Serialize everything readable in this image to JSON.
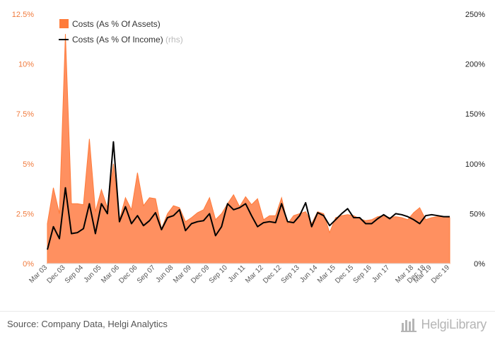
{
  "chart_data": {
    "type": "area+line",
    "x_tick_labels": [
      "Mar 03",
      "Dec 03",
      "Sep 04",
      "Jun 05",
      "Mar 06",
      "Dec 06",
      "Sep 07",
      "Jun 08",
      "Mar 09",
      "Dec 09",
      "Sep 10",
      "Jun 11",
      "Mar 12",
      "Dec 12",
      "Sep 13",
      "Jun 14",
      "Mar 15",
      "Dec 15",
      "Sep 16",
      "Jun 17",
      "Mar 18",
      "Dec 18",
      "Mar 19",
      "Dec 19"
    ],
    "x_tick_quarter_index": [
      0,
      3,
      6,
      9,
      12,
      15,
      18,
      21,
      24,
      27,
      30,
      33,
      36,
      39,
      42,
      45,
      48,
      51,
      54,
      57,
      61,
      63,
      64,
      67
    ],
    "left_axis": {
      "ticks": [
        "0%",
        "2.5%",
        "5%",
        "7.5%",
        "10%",
        "12.5%"
      ],
      "range": [
        0,
        12.5
      ]
    },
    "right_axis": {
      "ticks": [
        "0%",
        "50%",
        "100%",
        "150%",
        "200%",
        "250%"
      ],
      "range": [
        0,
        250
      ]
    },
    "series": [
      {
        "name": "Costs (As % Of Assets)",
        "axis": "left",
        "kind": "area",
        "color": "#ff9060",
        "values": [
          2.0,
          3.8,
          2.5,
          11.5,
          3.0,
          3.0,
          2.95,
          6.25,
          2.6,
          3.7,
          2.8,
          5.0,
          2.2,
          3.3,
          2.7,
          4.55,
          2.9,
          3.3,
          3.25,
          1.75,
          2.5,
          2.9,
          2.8,
          2.1,
          2.3,
          2.55,
          2.7,
          3.3,
          2.2,
          2.5,
          3.0,
          3.45,
          2.85,
          3.35,
          2.95,
          3.25,
          2.2,
          2.4,
          2.4,
          3.3,
          2.0,
          2.4,
          2.5,
          2.6,
          2.0,
          2.6,
          2.5,
          1.55,
          2.3,
          2.4,
          2.45,
          2.4,
          2.25,
          2.15,
          2.2,
          2.35,
          2.4,
          2.3,
          2.35,
          2.3,
          2.2,
          2.55,
          2.8,
          2.2,
          2.3,
          2.35,
          2.35,
          2.3
        ]
      },
      {
        "name": "Costs (As % Of Income)",
        "axis": "right",
        "kind": "line",
        "note": "(rhs)",
        "color": "#000000",
        "values": [
          14,
          37,
          25,
          76,
          30,
          31,
          35,
          60,
          30,
          60,
          50,
          122,
          42,
          57,
          40,
          48,
          38,
          43,
          51,
          34,
          46,
          48,
          54,
          33,
          40,
          42,
          43,
          50,
          28,
          37,
          60,
          54,
          56,
          60,
          48,
          37,
          41,
          42,
          41,
          60,
          42,
          41,
          48,
          61,
          37,
          51,
          48,
          38,
          44,
          50,
          55,
          46,
          46,
          40,
          40,
          45,
          49,
          45,
          50,
          49,
          47,
          44,
          40,
          48,
          49,
          48,
          47,
          47
        ]
      }
    ],
    "legend": {
      "position": "top-left",
      "items": [
        {
          "label": "Costs (As % Of Assets)",
          "note": "",
          "symbol": "square",
          "color": "#ff7b3a"
        },
        {
          "label": "Costs (As % Of Income)",
          "note": "(rhs)",
          "symbol": "line",
          "color": "#000000"
        }
      ]
    },
    "grid": false
  },
  "footer": {
    "source": "Source: Company Data, Helgi Analytics",
    "brand": "HelgiLibrary"
  }
}
